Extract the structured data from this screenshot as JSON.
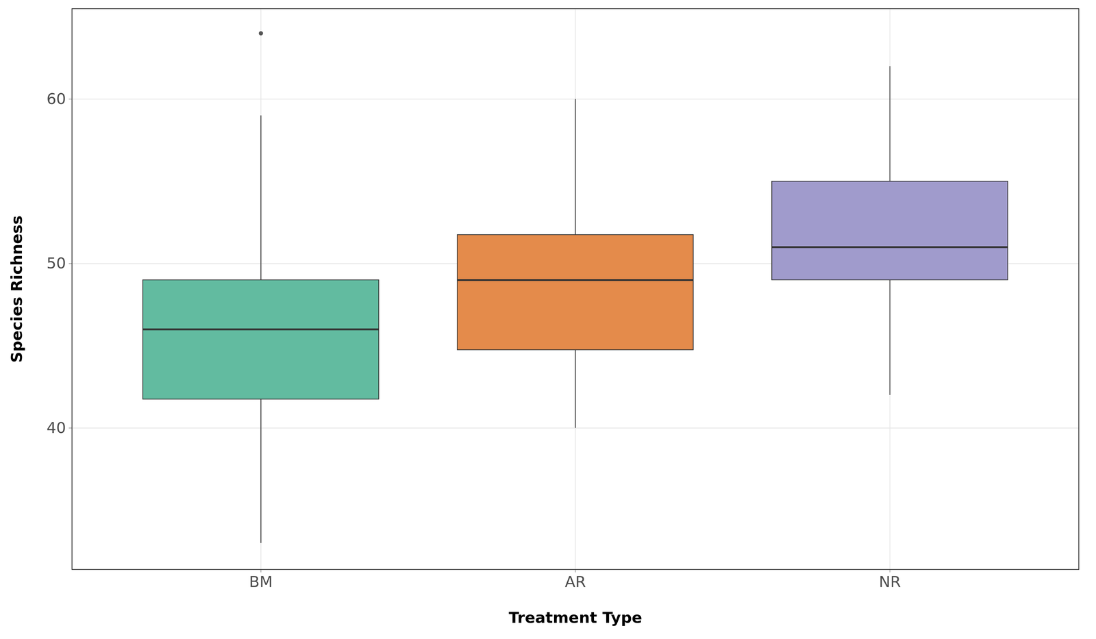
{
  "chart_data": {
    "type": "box",
    "x_label": "Treatment Type",
    "y_label": "Species Richness",
    "categories": [
      "BM",
      "AR",
      "NR"
    ],
    "colors": [
      "#62bba0",
      "#e48b4b",
      "#a09bcc"
    ],
    "whisker_low": [
      33,
      40,
      42
    ],
    "q1": [
      41.75,
      44.75,
      49
    ],
    "median": [
      46,
      49,
      51
    ],
    "q3": [
      49,
      51.75,
      55
    ],
    "whisker_high": [
      59,
      60,
      62
    ],
    "outliers": [
      [
        64
      ],
      [],
      []
    ],
    "ylim": [
      31.4,
      65.5
    ],
    "yticks": [
      40,
      50,
      60
    ],
    "grid": true
  }
}
